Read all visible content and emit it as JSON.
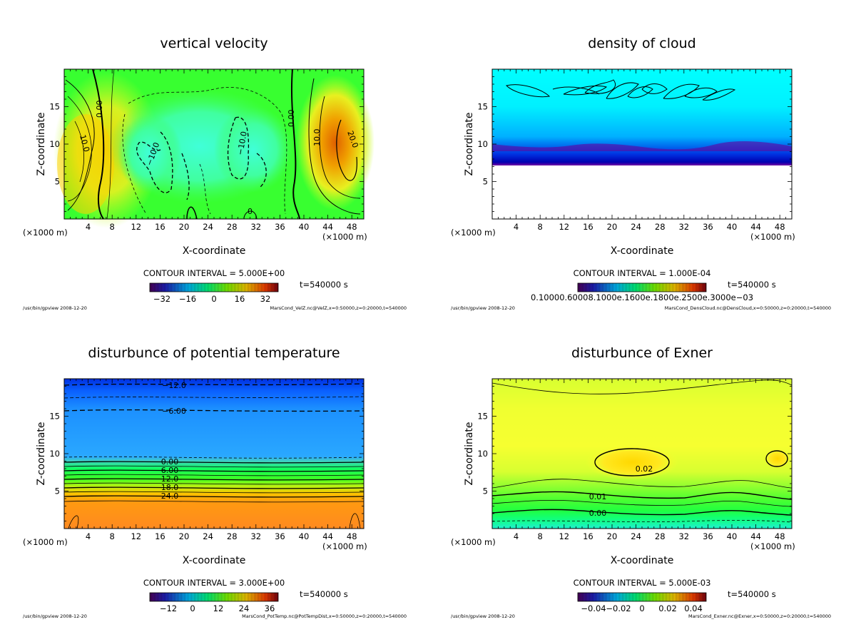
{
  "figure": {
    "panels": [
      {
        "title": "vertical velocity",
        "xlabel": "X-coordinate",
        "ylabel": "Z-coordinate",
        "xunit": "(×1000 m)",
        "contour_interval": "CONTOUR INTERVAL = 5.000E+00",
        "time": "t=540000 s",
        "footer_left": "/usr/bin/gpview  2008-12-20",
        "footer_right": "MarsCond_VelZ.nc@VelZ,x=0:50000,z=0:20000,t=540000",
        "colorbar_labels": [
          "−32",
          "−16",
          "0",
          "16",
          "32"
        ],
        "contour_labels": [
          "10.0",
          "0.00",
          "−10.0",
          "−10.0",
          "0.00",
          "10.0",
          "20.0",
          "0"
        ],
        "palette": [
          "#f0ff20",
          "#20ff20",
          "#40ffd0",
          "#e05000"
        ]
      },
      {
        "title": "density of cloud",
        "xlabel": "X-coordinate",
        "ylabel": "Z-coordinate",
        "xunit": "(×1000 m)",
        "contour_interval": "CONTOUR INTERVAL = 1.000E-04",
        "time": "t=540000 s",
        "footer_left": "/usr/bin/gpview  2008-12-20",
        "footer_right": "MarsCond_DensCloud.nc@DensCloud,x=0:50000,z=0:20000,t=540000",
        "colorbar_labels": [
          "0.10000.60008.1000e.1600e.1800e.2500e.3000e−03"
        ],
        "contour_labels": [],
        "palette": [
          "#00ffff",
          "#0000c0",
          "#8000a0",
          "#ffffff"
        ]
      },
      {
        "title": "disturbunce of potential temperature",
        "xlabel": "X-coordinate",
        "ylabel": "Z-coordinate",
        "xunit": "(×1000 m)",
        "contour_interval": "CONTOUR INTERVAL = 3.000E+00",
        "time": "t=540000 s",
        "footer_left": "/usr/bin/gpview  2008-12-20",
        "footer_right": "MarsCond_PotTemp.nc@PotTempDist,x=0:50000,z=0:20000,t=540000",
        "colorbar_labels": [
          "−12",
          "0",
          "12",
          "24",
          "36"
        ],
        "contour_labels": [
          "−12.0",
          "−6.00",
          "0.00",
          "6.00",
          "12.0",
          "18.0",
          "24.0"
        ],
        "palette": [
          "#1060ff",
          "#30a8ff",
          "#00ff60",
          "#ff8020"
        ]
      },
      {
        "title": "disturbunce of Exner",
        "xlabel": "X-coordinate",
        "ylabel": "Z-coordinate",
        "xunit": "(×1000 m)",
        "contour_interval": "CONTOUR INTERVAL = 5.000E-03",
        "time": "t=540000 s",
        "footer_left": "/usr/bin/gpview  2008-12-20",
        "footer_right": "MarsCond_Exner.nc@Exner,x=0:50000,z=0:20000,t=540000",
        "colorbar_labels": [
          "−0.04",
          "−0.02",
          "0",
          "0.02",
          "0.04"
        ],
        "contour_labels": [
          "0.02",
          "0.01",
          "0.00"
        ],
        "palette": [
          "#f0ff30",
          "#c8ff30",
          "#30ff40",
          "#30e0c0"
        ]
      }
    ]
  },
  "chart_data": [
    {
      "type": "heatmap",
      "title": "vertical velocity",
      "xlabel": "X-coordinate",
      "ylabel": "Z-coordinate",
      "xlim": [
        0,
        50
      ],
      "ylim": [
        0,
        20
      ],
      "xticks": [
        4,
        8,
        12,
        16,
        20,
        24,
        28,
        32,
        36,
        40,
        44,
        48
      ],
      "yticks": [
        5,
        10,
        15
      ],
      "colorbar_range": [
        -40,
        40
      ],
      "contour_interval": 5.0
    },
    {
      "type": "heatmap",
      "title": "density of cloud",
      "xlabel": "X-coordinate",
      "ylabel": "Z-coordinate",
      "xlim": [
        0,
        50
      ],
      "ylim": [
        0,
        20
      ],
      "xticks": [
        4,
        8,
        12,
        16,
        20,
        24,
        28,
        32,
        36,
        40,
        44,
        48
      ],
      "yticks": [
        5,
        10,
        15
      ],
      "cloud_base_z": 9.5,
      "contour_interval": 0.0001
    },
    {
      "type": "heatmap",
      "title": "disturbunce of potential temperature",
      "xlabel": "X-coordinate",
      "ylabel": "Z-coordinate",
      "xlim": [
        0,
        50
      ],
      "ylim": [
        0,
        20
      ],
      "xticks": [
        4,
        8,
        12,
        16,
        20,
        24,
        28,
        32,
        36,
        40,
        44,
        48
      ],
      "yticks": [
        5,
        10,
        15
      ],
      "colorbar_range": [
        -20,
        40
      ],
      "contour_interval": 3.0,
      "contour_levels": [
        {
          "label": "−12.0",
          "z": 19.1
        },
        {
          "label": "−6.00",
          "z": 15.9
        },
        {
          "label": "0.00",
          "z": 9.2
        },
        {
          "label": "6.00",
          "z": 8.0
        },
        {
          "label": "12.0",
          "z": 6.8
        },
        {
          "label": "18.0",
          "z": 5.6
        },
        {
          "label": "24.0",
          "z": 4.3
        }
      ]
    },
    {
      "type": "heatmap",
      "title": "disturbunce of Exner",
      "xlabel": "X-coordinate",
      "ylabel": "Z-coordinate",
      "xlim": [
        0,
        50
      ],
      "ylim": [
        0,
        20
      ],
      "xticks": [
        4,
        8,
        12,
        16,
        20,
        24,
        28,
        32,
        36,
        40,
        44,
        48
      ],
      "yticks": [
        5,
        10,
        15
      ],
      "colorbar_range": [
        -0.05,
        0.05
      ],
      "contour_interval": 0.005,
      "contour_levels": [
        {
          "label": "0.02",
          "x": 24,
          "z": 9.0
        },
        {
          "label": "0.01",
          "z": 4.0
        },
        {
          "label": "0.00",
          "z": 1.8
        }
      ]
    }
  ]
}
